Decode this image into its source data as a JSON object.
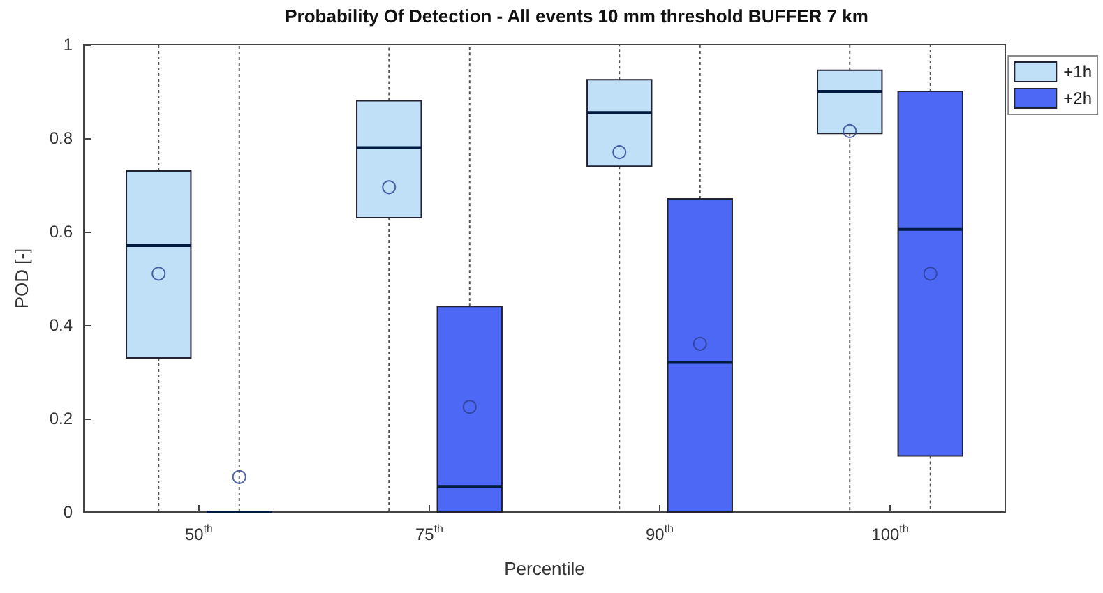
{
  "chart_data": {
    "type": "box",
    "title": "Probability Of Detection - All events 10 mm threshold BUFFER 7 km",
    "xlabel": "Percentile",
    "ylabel": "POD [-]",
    "categories": [
      "50$^{th}$",
      "75$^{th}$",
      "90$^{th}$",
      "100$^{th}$"
    ],
    "series": [
      {
        "name": "+1h",
        "color": "#bfe0f7",
        "boxes": [
          {
            "low": 0,
            "q1": 0.33,
            "median": 0.57,
            "q3": 0.73,
            "high": 1,
            "mean": 0.51
          },
          {
            "low": 0,
            "q1": 0.63,
            "median": 0.78,
            "q3": 0.88,
            "high": 1,
            "mean": 0.695
          },
          {
            "low": 0,
            "q1": 0.74,
            "median": 0.855,
            "q3": 0.925,
            "high": 1,
            "mean": 0.77
          },
          {
            "low": 0,
            "q1": 0.81,
            "median": 0.9,
            "q3": 0.945,
            "high": 1,
            "mean": 0.815
          }
        ]
      },
      {
        "name": "+2h",
        "color": "#4d68f4",
        "boxes": [
          {
            "low": 0,
            "q1": 0,
            "median": 0,
            "q3": 0,
            "high": 1,
            "mean": 0.075
          },
          {
            "low": 0,
            "q1": 0,
            "median": 0.055,
            "q3": 0.44,
            "high": 1,
            "mean": 0.225
          },
          {
            "low": 0,
            "q1": 0,
            "median": 0.32,
            "q3": 0.67,
            "high": 1,
            "mean": 0.36
          },
          {
            "low": 0,
            "q1": 0.12,
            "median": 0.605,
            "q3": 0.9,
            "high": 1,
            "mean": 0.51
          }
        ]
      }
    ],
    "ylim": [
      0,
      1
    ],
    "yticks": [
      0,
      0.2,
      0.4,
      0.6,
      0.8,
      1
    ],
    "grid": false,
    "legend": "top right"
  }
}
